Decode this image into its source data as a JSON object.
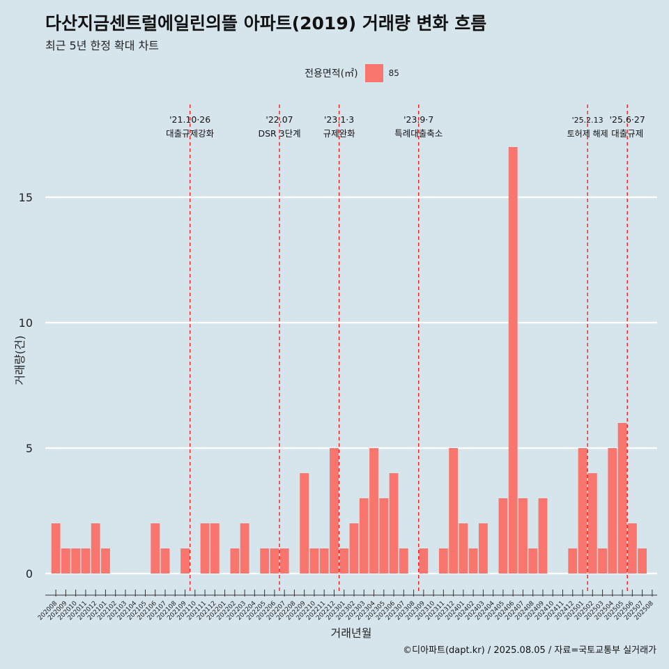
{
  "header": {
    "title": "다산지금센트럴에일린의뜰 아파트(2019) 거래량 변화 흐름",
    "subtitle": "최근 5년 한정 확대 차트"
  },
  "legend": {
    "title": "전용면적(㎡)",
    "item_label": "85",
    "item_color": "#f8766d"
  },
  "caption": "©디아파트(dapt.kr) / 2025.08.05 / 자료=국토교통부 실거래가",
  "chart_data": {
    "type": "bar",
    "xlabel": "거래년월",
    "ylabel": "거래량(건)",
    "ylim": [
      0,
      17
    ],
    "yticks": [
      0,
      5,
      10,
      15
    ],
    "grid": true,
    "legend_position": "top",
    "bar_color": "#f8766d",
    "categories": [
      "202008",
      "202009",
      "202010",
      "202011",
      "202012",
      "202101",
      "202102",
      "202103",
      "202104",
      "202105",
      "202106",
      "202107",
      "202108",
      "202109",
      "202110",
      "202111",
      "202112",
      "202201",
      "202202",
      "202203",
      "202204",
      "202205",
      "202206",
      "202207",
      "202208",
      "202209",
      "202210",
      "202211",
      "202212",
      "202301",
      "202302",
      "202303",
      "202304",
      "202305",
      "202306",
      "202307",
      "202308",
      "202309",
      "202310",
      "202311",
      "202312",
      "202401",
      "202402",
      "202403",
      "202404",
      "202405",
      "202406",
      "202407",
      "202408",
      "202409",
      "202410",
      "202411",
      "202412",
      "202501",
      "202502",
      "202503",
      "202504",
      "202505",
      "202506",
      "202507",
      "202508"
    ],
    "series": [
      {
        "name": "85",
        "values": [
          2,
          1,
          1,
          1,
          2,
          1,
          0,
          0,
          0,
          0,
          2,
          1,
          0,
          1,
          0,
          2,
          2,
          0,
          1,
          2,
          0,
          1,
          1,
          1,
          0,
          4,
          1,
          1,
          5,
          1,
          2,
          3,
          5,
          3,
          4,
          1,
          0,
          1,
          0,
          1,
          5,
          2,
          1,
          2,
          0,
          3,
          17,
          3,
          1,
          3,
          0,
          0,
          1,
          5,
          4,
          1,
          5,
          6,
          2,
          1,
          0
        ]
      }
    ],
    "annotations": [
      {
        "date_label": "'21.10·26",
        "event": "대출규제강화",
        "x_index": 13.5
      },
      {
        "date_label": "'22.07",
        "event": "DSR 3단계",
        "x_index": 22.5
      },
      {
        "date_label": "'23.1·3",
        "event": "규제완화",
        "x_index": 28.5
      },
      {
        "date_label": "'23.9·7",
        "event": "특례대출축소",
        "x_index": 36.5
      },
      {
        "date_label": "'25.2.13",
        "event": "토허제 해제",
        "x_index": 53.5
      },
      {
        "date_label": "'25.6·27",
        "event": "대출규제",
        "x_index": 57.5
      }
    ]
  }
}
